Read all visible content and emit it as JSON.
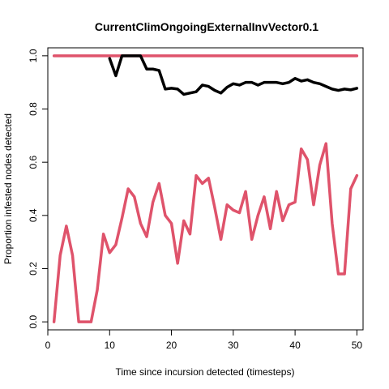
{
  "chart_data": {
    "type": "line",
    "title": "CurrentClimOngoingExternalInvVector0.1",
    "xlabel": "Time since incursion detected (timesteps)",
    "ylabel": "Proportion infested nodes detected",
    "xlim": [
      0,
      51
    ],
    "ylim": [
      -0.03,
      1.03
    ],
    "x_ticks": [
      0,
      10,
      20,
      30,
      40,
      50
    ],
    "y_ticks": [
      0.0,
      0.2,
      0.4,
      0.6,
      0.8,
      1.0
    ],
    "x_tick_labels": [
      "0",
      "10",
      "20",
      "30",
      "40",
      "50"
    ],
    "y_tick_labels": [
      "0.0",
      "0.2",
      "0.4",
      "0.6",
      "0.8",
      "1.0"
    ],
    "grid": false,
    "colors": {
      "black_series": "#000000",
      "red_series": "#DF536B"
    },
    "series": [
      {
        "color": "#DF536B",
        "x": [
          1,
          2,
          3,
          4,
          5,
          6,
          7,
          8,
          9,
          10,
          11,
          12,
          13,
          14,
          15,
          16,
          17,
          18,
          19,
          20,
          21,
          22,
          23,
          24,
          25,
          26,
          27,
          28,
          29,
          30,
          31,
          32,
          33,
          34,
          35,
          36,
          37,
          38,
          39,
          40,
          41,
          42,
          43,
          44,
          45,
          46,
          47,
          48,
          49,
          50
        ],
        "values": [
          1,
          1,
          1,
          1,
          1,
          1,
          1,
          1,
          1,
          1,
          1,
          1,
          1,
          1,
          1,
          1,
          1,
          1,
          1,
          1,
          1,
          1,
          1,
          1,
          1,
          1,
          1,
          1,
          1,
          1,
          1,
          1,
          1,
          1,
          1,
          1,
          1,
          1,
          1,
          1,
          1,
          1,
          1,
          1,
          1,
          1,
          1,
          1,
          1,
          1
        ]
      },
      {
        "color": "#000000",
        "x": [
          10,
          11,
          12,
          13,
          14,
          15,
          16,
          17,
          18,
          19,
          20,
          21,
          22,
          23,
          24,
          25,
          26,
          27,
          28,
          29,
          30,
          31,
          32,
          33,
          34,
          35,
          36,
          37,
          38,
          39,
          40,
          41,
          42,
          43,
          44,
          45,
          46,
          47,
          48,
          49,
          50
        ],
        "values": [
          0.99,
          0.925,
          1.0,
          1.0,
          1.0,
          1.0,
          0.95,
          0.95,
          0.945,
          0.875,
          0.878,
          0.875,
          0.855,
          0.86,
          0.865,
          0.89,
          0.885,
          0.87,
          0.86,
          0.882,
          0.895,
          0.89,
          0.9,
          0.9,
          0.89,
          0.9,
          0.9,
          0.9,
          0.895,
          0.9,
          0.915,
          0.905,
          0.91,
          0.9,
          0.895,
          0.885,
          0.875,
          0.87,
          0.875,
          0.872,
          0.878
        ]
      },
      {
        "color": "#DF536B",
        "x": [
          1,
          2,
          3,
          4,
          5,
          6,
          7,
          8,
          9,
          10,
          11,
          12,
          13,
          14,
          15,
          16,
          17,
          18,
          19,
          20,
          21,
          22,
          23,
          24,
          25,
          26,
          27,
          28,
          29,
          30,
          31,
          32,
          33,
          34,
          35,
          36,
          37,
          38,
          39,
          40,
          41,
          42,
          43,
          44,
          45,
          46,
          47,
          48,
          49,
          50
        ],
        "values": [
          0.0,
          0.25,
          0.36,
          0.25,
          0.0,
          0.0,
          0.0,
          0.12,
          0.33,
          0.26,
          0.29,
          0.39,
          0.5,
          0.47,
          0.37,
          0.32,
          0.45,
          0.52,
          0.4,
          0.37,
          0.22,
          0.38,
          0.33,
          0.55,
          0.52,
          0.54,
          0.43,
          0.31,
          0.44,
          0.42,
          0.41,
          0.49,
          0.31,
          0.4,
          0.47,
          0.35,
          0.49,
          0.38,
          0.44,
          0.45,
          0.65,
          0.61,
          0.44,
          0.59,
          0.67,
          0.37,
          0.18,
          0.18,
          0.5,
          0.55
        ]
      }
    ]
  }
}
